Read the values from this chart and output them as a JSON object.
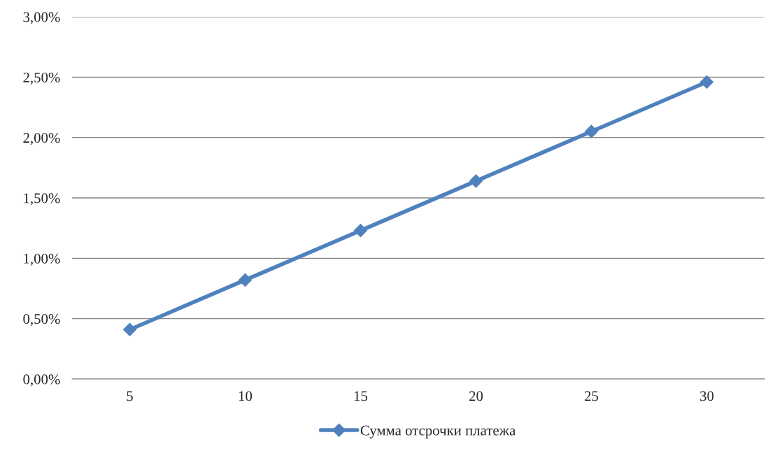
{
  "chart_data": {
    "type": "line",
    "categories": [
      "5",
      "10",
      "15",
      "20",
      "25",
      "30"
    ],
    "series": [
      {
        "name": "Сумма отсрочки платежа",
        "color": "#4f81bd",
        "values": [
          0.41,
          0.82,
          1.23,
          1.64,
          2.05,
          2.46
        ]
      }
    ],
    "ylim": [
      0,
      3
    ],
    "yticks": [
      {
        "value": 0,
        "label": "0,00%"
      },
      {
        "value": 0.5,
        "label": "0,50%"
      },
      {
        "value": 1,
        "label": "1,00%"
      },
      {
        "value": 1.5,
        "label": "1,50%"
      },
      {
        "value": 2,
        "label": "2,00%"
      },
      {
        "value": 2.5,
        "label": "2,50%"
      },
      {
        "value": 3,
        "label": "3,00%"
      }
    ],
    "grid": "y",
    "legend": "bottom",
    "marker": "diamond",
    "line_style": "solid"
  }
}
